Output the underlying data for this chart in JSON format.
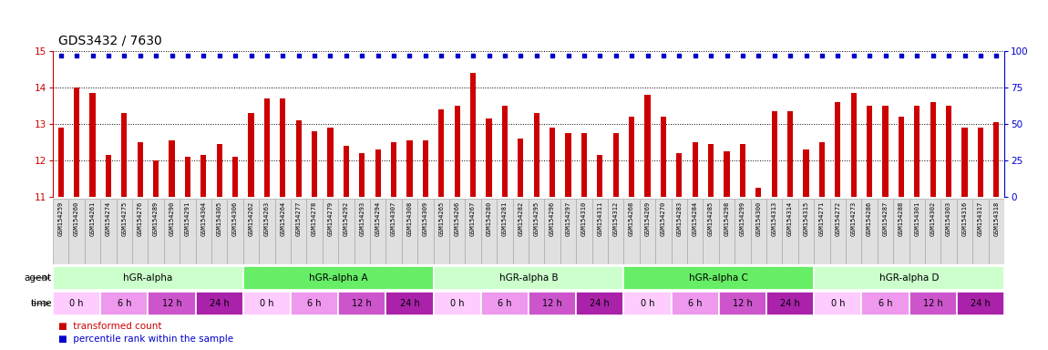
{
  "title": "GDS3432 / 7630",
  "bar_color": "#cc0000",
  "dot_color": "#0000cc",
  "ylim_left": [
    11,
    15
  ],
  "ylim_right": [
    0,
    100
  ],
  "yticks_left": [
    11,
    12,
    13,
    14,
    15
  ],
  "yticks_right": [
    0,
    25,
    50,
    75,
    100
  ],
  "sample_labels": [
    "GSM154259",
    "GSM154260",
    "GSM154261",
    "GSM154274",
    "GSM154275",
    "GSM154276",
    "GSM154289",
    "GSM154290",
    "GSM154291",
    "GSM154304",
    "GSM154305",
    "GSM154306",
    "GSM154262",
    "GSM154263",
    "GSM154264",
    "GSM154277",
    "GSM154278",
    "GSM154279",
    "GSM154292",
    "GSM154293",
    "GSM154294",
    "GSM154307",
    "GSM154308",
    "GSM154309",
    "GSM154265",
    "GSM154266",
    "GSM154267",
    "GSM154280",
    "GSM154281",
    "GSM154282",
    "GSM154295",
    "GSM154296",
    "GSM154297",
    "GSM154310",
    "GSM154311",
    "GSM154312",
    "GSM154268",
    "GSM154269",
    "GSM154270",
    "GSM154283",
    "GSM154284",
    "GSM154285",
    "GSM154298",
    "GSM154299",
    "GSM154300",
    "GSM154313",
    "GSM154314",
    "GSM154315",
    "GSM154271",
    "GSM154272",
    "GSM154273",
    "GSM154286",
    "GSM154287",
    "GSM154288",
    "GSM154301",
    "GSM154302",
    "GSM154303",
    "GSM154316",
    "GSM154317",
    "GSM154318"
  ],
  "bar_values": [
    12.9,
    14.0,
    13.85,
    12.15,
    13.3,
    12.5,
    12.0,
    12.55,
    12.1,
    12.15,
    12.45,
    12.1,
    13.3,
    13.7,
    13.7,
    13.1,
    12.8,
    12.9,
    12.4,
    12.2,
    12.3,
    12.5,
    12.55,
    12.55,
    13.4,
    13.5,
    14.4,
    13.15,
    13.5,
    12.6,
    13.3,
    12.9,
    12.75,
    12.75,
    12.15,
    12.75,
    13.2,
    13.8,
    13.2,
    12.2,
    12.5,
    12.45,
    12.25,
    12.45,
    11.25,
    13.35,
    13.35,
    12.3,
    12.5,
    13.6,
    13.85,
    13.5,
    13.5,
    13.2,
    13.5,
    13.6,
    13.5,
    12.9,
    12.9,
    13.05
  ],
  "percentile_values": [
    97,
    97,
    97,
    97,
    97,
    97,
    97,
    97,
    97,
    97,
    97,
    97,
    97,
    97,
    97,
    97,
    97,
    97,
    97,
    97,
    97,
    97,
    97,
    97,
    97,
    97,
    97,
    97,
    97,
    97,
    97,
    97,
    97,
    97,
    97,
    97,
    97,
    97,
    97,
    97,
    97,
    97,
    97,
    97,
    97,
    97,
    97,
    97,
    97,
    97,
    97,
    97,
    97,
    97,
    97,
    97,
    97,
    97,
    97,
    97
  ],
  "agents": [
    {
      "label": "hGR-alpha",
      "start": 0,
      "end": 12,
      "color": "#ccffcc"
    },
    {
      "label": "hGR-alpha A",
      "start": 12,
      "end": 24,
      "color": "#66ee66"
    },
    {
      "label": "hGR-alpha B",
      "start": 24,
      "end": 36,
      "color": "#ccffcc"
    },
    {
      "label": "hGR-alpha C",
      "start": 36,
      "end": 48,
      "color": "#66ee66"
    },
    {
      "label": "hGR-alpha D",
      "start": 48,
      "end": 60,
      "color": "#ccffcc"
    }
  ],
  "time_groups": [
    {
      "label": "0 h",
      "start": 0,
      "end": 3,
      "shade": 0
    },
    {
      "label": "6 h",
      "start": 3,
      "end": 6,
      "shade": 1
    },
    {
      "label": "12 h",
      "start": 6,
      "end": 9,
      "shade": 2
    },
    {
      "label": "24 h",
      "start": 9,
      "end": 12,
      "shade": 3
    },
    {
      "label": "0 h",
      "start": 12,
      "end": 15,
      "shade": 0
    },
    {
      "label": "6 h",
      "start": 15,
      "end": 18,
      "shade": 1
    },
    {
      "label": "12 h",
      "start": 18,
      "end": 21,
      "shade": 2
    },
    {
      "label": "24 h",
      "start": 21,
      "end": 24,
      "shade": 3
    },
    {
      "label": "0 h",
      "start": 24,
      "end": 27,
      "shade": 0
    },
    {
      "label": "6 h",
      "start": 27,
      "end": 30,
      "shade": 1
    },
    {
      "label": "12 h",
      "start": 30,
      "end": 33,
      "shade": 2
    },
    {
      "label": "24 h",
      "start": 33,
      "end": 36,
      "shade": 3
    },
    {
      "label": "0 h",
      "start": 36,
      "end": 39,
      "shade": 0
    },
    {
      "label": "6 h",
      "start": 39,
      "end": 42,
      "shade": 1
    },
    {
      "label": "12 h",
      "start": 42,
      "end": 45,
      "shade": 2
    },
    {
      "label": "24 h",
      "start": 45,
      "end": 48,
      "shade": 3
    },
    {
      "label": "0 h",
      "start": 48,
      "end": 51,
      "shade": 0
    },
    {
      "label": "6 h",
      "start": 51,
      "end": 54,
      "shade": 1
    },
    {
      "label": "12 h",
      "start": 54,
      "end": 57,
      "shade": 2
    },
    {
      "label": "24 h",
      "start": 57,
      "end": 60,
      "shade": 3
    }
  ],
  "time_colors": [
    "#ffccff",
    "#ee99ee",
    "#cc55cc",
    "#aa22aa"
  ],
  "legend_red_label": "transformed count",
  "legend_blue_label": "percentile rank within the sample",
  "background_color": "#ffffff",
  "label_box_color": "#e0e0e0",
  "label_box_edge": "#aaaaaa"
}
